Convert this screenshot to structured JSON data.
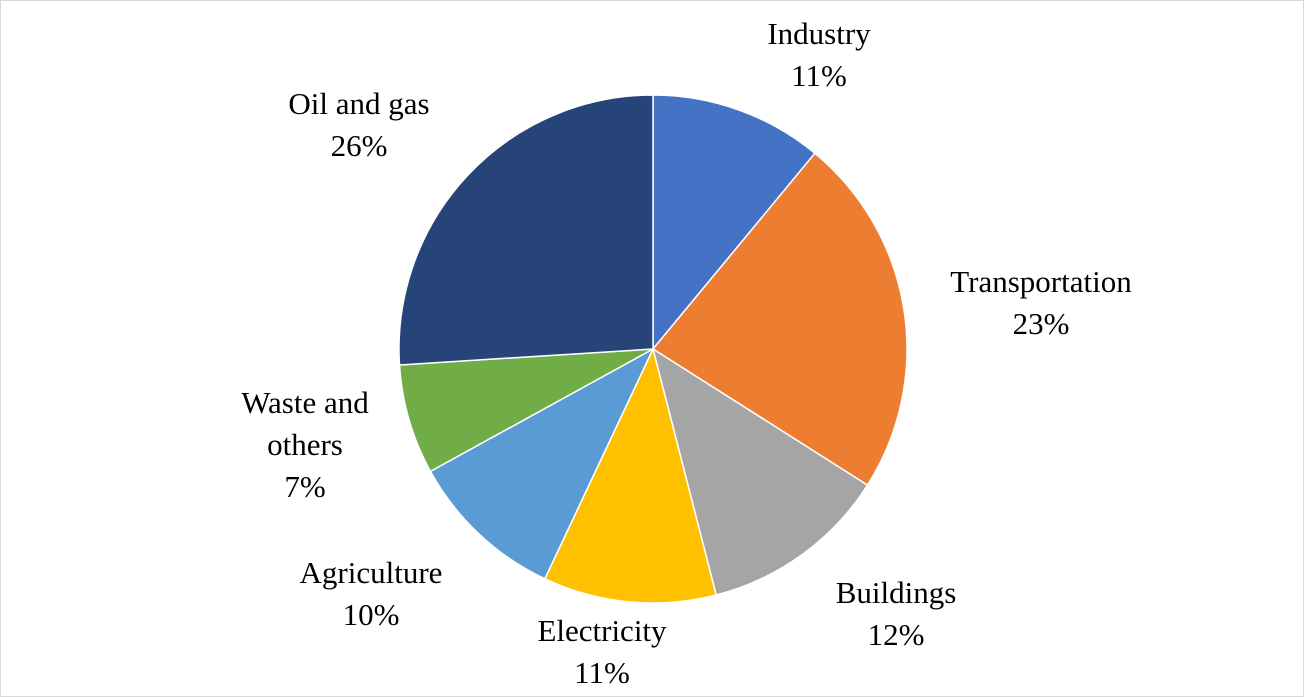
{
  "chart_data": {
    "type": "pie",
    "title": "",
    "legend": "none",
    "slices": [
      {
        "name": "Industry",
        "value": 11,
        "label": "11%",
        "color": "#4472C4"
      },
      {
        "name": "Transportation",
        "value": 23,
        "label": "23%",
        "color": "#ED7D31"
      },
      {
        "name": "Buildings",
        "value": 12,
        "label": "12%",
        "color": "#A5A5A5"
      },
      {
        "name": "Electricity",
        "value": 11,
        "label": "11%",
        "color": "#FFC000"
      },
      {
        "name": "Agriculture",
        "value": 10,
        "label": "10%",
        "color": "#5B9BD5"
      },
      {
        "name": "Waste and others",
        "value": 7,
        "label": "7%",
        "color": "#70AD47"
      },
      {
        "name": "Oil and gas",
        "value": 26,
        "label": "26%",
        "color": "#264478"
      }
    ]
  }
}
